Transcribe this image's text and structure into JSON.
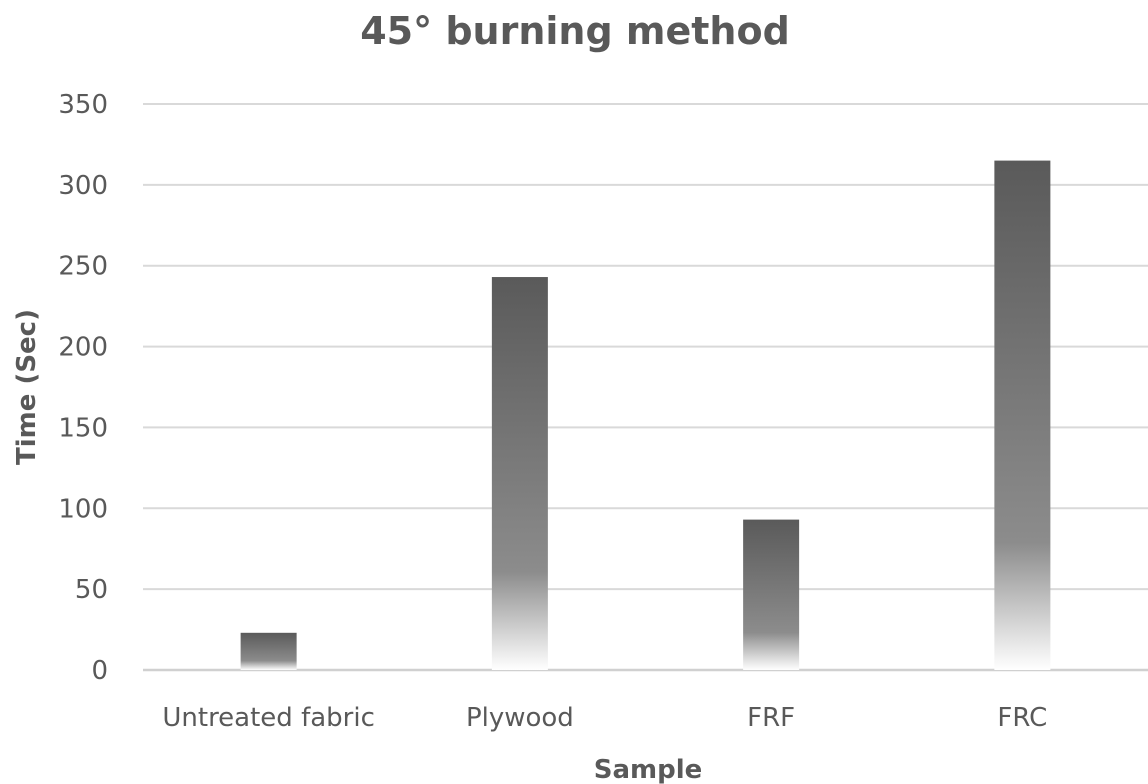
{
  "chart_data": {
    "type": "bar",
    "title": "45° burning method",
    "xlabel": "Sample",
    "ylabel": "Time (Sec)",
    "categories": [
      "Untreated fabric",
      "Plywood",
      "FRF",
      "FRC"
    ],
    "values": [
      23,
      243,
      93,
      315
    ],
    "ylim": [
      0,
      350
    ],
    "yticks": [
      0,
      50,
      100,
      150,
      200,
      250,
      300,
      350
    ],
    "grid": true,
    "legend": "none",
    "colors": {
      "bar_top": "#5a5a5a",
      "bar_bottom": "#ffffff",
      "grid": "#d9d9d9",
      "text": "#595959"
    }
  }
}
